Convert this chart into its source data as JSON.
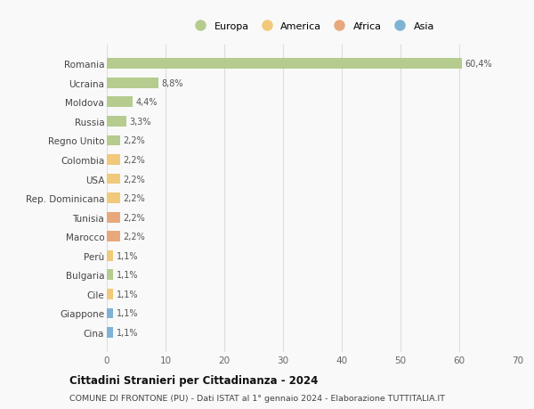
{
  "countries": [
    "Romania",
    "Ucraina",
    "Moldova",
    "Russia",
    "Regno Unito",
    "Colombia",
    "USA",
    "Rep. Dominicana",
    "Tunisia",
    "Marocco",
    "Perù",
    "Bulgaria",
    "Cile",
    "Giappone",
    "Cina"
  ],
  "values": [
    60.4,
    8.8,
    4.4,
    3.3,
    2.2,
    2.2,
    2.2,
    2.2,
    2.2,
    2.2,
    1.1,
    1.1,
    1.1,
    1.1,
    1.1
  ],
  "labels": [
    "60,4%",
    "8,8%",
    "4,4%",
    "3,3%",
    "2,2%",
    "2,2%",
    "2,2%",
    "2,2%",
    "2,2%",
    "2,2%",
    "1,1%",
    "1,1%",
    "1,1%",
    "1,1%",
    "1,1%"
  ],
  "continent": [
    "Europa",
    "Europa",
    "Europa",
    "Europa",
    "Europa",
    "America",
    "America",
    "America",
    "Africa",
    "Africa",
    "America",
    "Europa",
    "America",
    "Asia",
    "Asia"
  ],
  "colors": {
    "Europa": "#b5cc8e",
    "America": "#f0c97a",
    "Africa": "#e8a87c",
    "Asia": "#7eb3d4"
  },
  "legend_order": [
    "Europa",
    "America",
    "Africa",
    "Asia"
  ],
  "title": "Cittadini Stranieri per Cittadinanza - 2024",
  "subtitle": "COMUNE DI FRONTONE (PU) - Dati ISTAT al 1° gennaio 2024 - Elaborazione TUTTITALIA.IT",
  "xlim": [
    0,
    70
  ],
  "xticks": [
    0,
    10,
    20,
    30,
    40,
    50,
    60,
    70
  ],
  "background_color": "#f9f9f9",
  "grid_color": "#dddddd"
}
